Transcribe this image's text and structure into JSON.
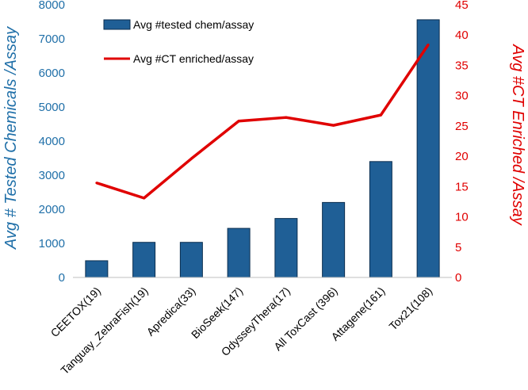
{
  "chart_data": {
    "type": "bar+line",
    "categories": [
      "CEETOX(19)",
      "Tanguay_ZebraFish(19)",
      "Apredica(33)",
      "BioSeek(147)",
      "OdysseyThera(17)",
      "All ToxCast (396)",
      "Attagene(161)",
      "Tox21(108)"
    ],
    "series": [
      {
        "name": "Avg #tested chem/assay",
        "type": "bar",
        "axis": "left",
        "color": "#1f5f96",
        "values": [
          490,
          1030,
          1030,
          1440,
          1730,
          2200,
          3400,
          7560
        ]
      },
      {
        "name": "Avg #CT enriched/assay",
        "type": "line",
        "axis": "right",
        "color": "#e00000",
        "values": [
          15.6,
          13.1,
          19.6,
          25.8,
          26.4,
          25.1,
          26.8,
          38.4
        ]
      }
    ],
    "ylabel_left": "Avg # Tested Chemicals /Assay",
    "ylabel_right": "Avg #CT Enriched /Assay",
    "ylim_left": [
      0,
      8000
    ],
    "yticks_left": [
      0,
      1000,
      2000,
      3000,
      4000,
      5000,
      6000,
      7000,
      8000
    ],
    "ylim_right": [
      0,
      45
    ],
    "yticks_right": [
      0,
      5,
      10,
      15,
      20,
      25,
      30,
      35,
      40,
      45
    ],
    "legend": [
      {
        "label": "Avg #tested chem/assay",
        "kind": "bar"
      },
      {
        "label": "Avg #CT enriched/assay",
        "kind": "line"
      }
    ],
    "legend_position": "top-left"
  }
}
